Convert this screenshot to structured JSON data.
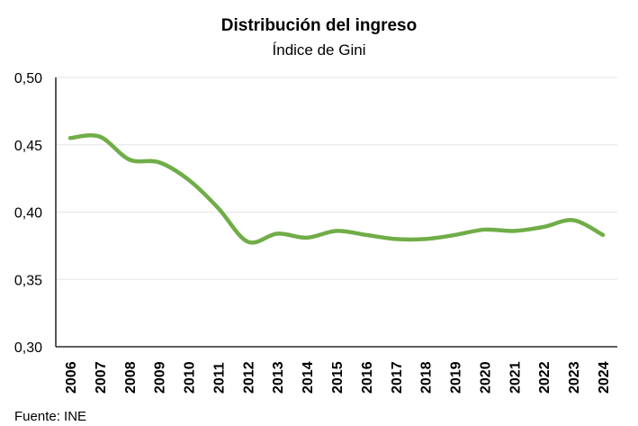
{
  "chart_data": {
    "type": "line",
    "title": "Distribución del ingreso",
    "subtitle": "Índice de Gini",
    "xlabel": "",
    "ylabel": "",
    "x": [
      "2006",
      "2007",
      "2008",
      "2009",
      "2010",
      "2011",
      "2012",
      "2013",
      "2014",
      "2015",
      "2016",
      "2017",
      "2018",
      "2019",
      "2020",
      "2021",
      "2022",
      "2023",
      "2024"
    ],
    "series": [
      {
        "values": [
          0.455,
          0.456,
          0.439,
          0.437,
          0.424,
          0.403,
          0.378,
          0.384,
          0.381,
          0.386,
          0.383,
          0.38,
          0.38,
          0.383,
          0.387,
          0.386,
          0.389,
          0.394,
          0.383
        ]
      }
    ],
    "ylim": [
      0.3,
      0.5
    ],
    "yticks": [
      "0,30",
      "0,35",
      "0,40",
      "0,45",
      "0,50"
    ],
    "grid": true,
    "legend": "none",
    "line_color": "#70AD47"
  },
  "source": "Fuente: INE"
}
